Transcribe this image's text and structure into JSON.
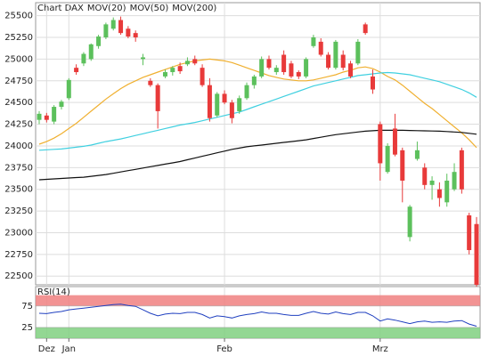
{
  "chart_data": [
    {
      "type": "candlestick",
      "title": "Chart DAX",
      "title_color": "#e05a5a",
      "categories": [
        null,
        "Dez",
        null,
        null,
        "Jan",
        null,
        null,
        null,
        null,
        null,
        null,
        null,
        null,
        null,
        null,
        null,
        null,
        null,
        null,
        null,
        null,
        null,
        null,
        null,
        null,
        "Feb",
        null,
        null,
        null,
        null,
        null,
        null,
        null,
        null,
        null,
        null,
        null,
        null,
        null,
        null,
        null,
        null,
        null,
        null,
        null,
        null,
        "Mrz",
        null,
        null,
        null,
        null,
        null,
        null,
        null,
        null,
        null,
        null,
        null,
        null,
        null
      ],
      "open": [
        24300,
        24350,
        24280,
        24450,
        24550,
        24900,
        24950,
        25000,
        25150,
        25250,
        25350,
        25450,
        25350,
        25300,
        25000,
        24750,
        24700,
        24800,
        24850,
        24920,
        24940,
        25000,
        24900,
        24700,
        24350,
        24600,
        24500,
        24400,
        24550,
        24700,
        24800,
        25000,
        24850,
        25050,
        24950,
        24850,
        24800,
        25150,
        25200,
        25050,
        24900,
        25050,
        24950,
        24950,
        25400,
        24800,
        24250,
        23700,
        24200,
        23950,
        22950,
        23850,
        23750,
        23550,
        23500,
        23350,
        23500,
        23950,
        23200,
        23100
      ],
      "high": [
        24400,
        24380,
        24470,
        24530,
        24780,
        24940,
        25080,
        25180,
        25280,
        25420,
        25480,
        25490,
        25380,
        25330,
        25060,
        24780,
        24720,
        24880,
        24920,
        24960,
        25020,
        25040,
        24940,
        24780,
        24620,
        24640,
        24530,
        24580,
        24730,
        24820,
        25030,
        25040,
        24930,
        25100,
        24980,
        24870,
        25020,
        25280,
        25240,
        25080,
        25220,
        25100,
        24980,
        25230,
        25420,
        24880,
        24280,
        24030,
        24370,
        23980,
        23320,
        24050,
        23800,
        23650,
        23580,
        23680,
        23800,
        23980,
        23230,
        23180
      ],
      "low": [
        24250,
        24270,
        24250,
        24420,
        24530,
        24820,
        24920,
        24980,
        25120,
        25230,
        25330,
        25280,
        25240,
        25200,
        24930,
        24680,
        24200,
        24780,
        24810,
        24830,
        24920,
        24930,
        24680,
        24280,
        24330,
        24480,
        24260,
        24370,
        24530,
        24660,
        24780,
        24880,
        24820,
        24820,
        24780,
        24770,
        24780,
        25130,
        25030,
        24880,
        24880,
        24870,
        24780,
        24930,
        25280,
        24600,
        23600,
        23680,
        23880,
        23350,
        22900,
        23830,
        23500,
        23380,
        23300,
        23300,
        23480,
        23450,
        22750,
        22380
      ],
      "close": [
        24370,
        24300,
        24450,
        24510,
        24760,
        24850,
        25060,
        25170,
        25260,
        25400,
        25450,
        25300,
        25260,
        25250,
        25020,
        24700,
        24400,
        24850,
        24900,
        24860,
        24980,
        24950,
        24700,
        24320,
        24600,
        24500,
        24320,
        24550,
        24700,
        24800,
        25000,
        24900,
        24900,
        24850,
        24800,
        24800,
        25000,
        25250,
        25050,
        24900,
        25200,
        24900,
        24800,
        25200,
        25300,
        24650,
        23800,
        24000,
        23900,
        23600,
        23300,
        23950,
        23550,
        23600,
        23400,
        23600,
        23700,
        23500,
        22800,
        22400
      ],
      "up_color": "#5cc05c",
      "down_color": "#e83a3a",
      "overlays": [
        {
          "name": "MOV(20)",
          "color": "#f0b030",
          "values": [
            24020,
            24050,
            24090,
            24140,
            24200,
            24260,
            24330,
            24400,
            24470,
            24540,
            24600,
            24660,
            24710,
            24750,
            24790,
            24820,
            24850,
            24880,
            24910,
            24940,
            24960,
            24980,
            24990,
            25000,
            24990,
            24980,
            24960,
            24930,
            24900,
            24870,
            24840,
            24810,
            24790,
            24770,
            24760,
            24750,
            24750,
            24760,
            24780,
            24800,
            24820,
            24850,
            24870,
            24900,
            24910,
            24890,
            24850,
            24800,
            24760,
            24700,
            24630,
            24560,
            24490,
            24430,
            24360,
            24290,
            24220,
            24150,
            24070,
            23980
          ]
        },
        {
          "name": "MOV(50)",
          "color": "#40d0e0",
          "values": [
            23950,
            23955,
            23960,
            23965,
            23975,
            23985,
            23995,
            24010,
            24030,
            24050,
            24065,
            24080,
            24100,
            24120,
            24140,
            24160,
            24180,
            24200,
            24220,
            24240,
            24255,
            24270,
            24290,
            24310,
            24330,
            24350,
            24370,
            24390,
            24420,
            24450,
            24480,
            24510,
            24540,
            24570,
            24600,
            24630,
            24660,
            24690,
            24710,
            24730,
            24750,
            24770,
            24790,
            24810,
            24820,
            24830,
            24840,
            24845,
            24840,
            24830,
            24820,
            24800,
            24780,
            24760,
            24740,
            24710,
            24680,
            24650,
            24610,
            24560
          ]
        },
        {
          "name": "MOV(200)",
          "color": "#111111",
          "values": [
            23610,
            23615,
            23620,
            23625,
            23630,
            23635,
            23640,
            23650,
            23660,
            23670,
            23685,
            23700,
            23715,
            23730,
            23745,
            23760,
            23775,
            23790,
            23805,
            23820,
            23840,
            23860,
            23880,
            23900,
            23920,
            23940,
            23960,
            23975,
            23990,
            24000,
            24010,
            24020,
            24030,
            24040,
            24050,
            24060,
            24070,
            24085,
            24100,
            24115,
            24130,
            24140,
            24150,
            24160,
            24170,
            24175,
            24180,
            24180,
            24180,
            24180,
            24178,
            24176,
            24174,
            24172,
            24170,
            24165,
            24160,
            24155,
            24145,
            24135
          ]
        }
      ],
      "ylim": [
        22400,
        25650
      ],
      "yticks": [
        22500,
        22750,
        23000,
        23250,
        23500,
        23750,
        24000,
        24250,
        24500,
        24750,
        25000,
        25250,
        25500
      ],
      "grid": true
    },
    {
      "type": "line",
      "title": "RSI(14)",
      "color": "#2040c0",
      "values": [
        58,
        57,
        60,
        62,
        66,
        68,
        70,
        72,
        74,
        76,
        78,
        79,
        76,
        74,
        66,
        58,
        52,
        56,
        58,
        57,
        60,
        60,
        55,
        47,
        52,
        50,
        47,
        52,
        55,
        57,
        61,
        58,
        58,
        55,
        53,
        53,
        58,
        62,
        58,
        56,
        61,
        57,
        55,
        60,
        60,
        52,
        40,
        45,
        42,
        38,
        34,
        38,
        40,
        37,
        38,
        37,
        40,
        41,
        33,
        28
      ],
      "bands": [
        {
          "from": 75,
          "to": 100,
          "color": "#f08080"
        },
        {
          "from": 0,
          "to": 25,
          "color": "#80d080"
        }
      ],
      "ylim": [
        0,
        120
      ],
      "yticks": [
        25,
        75
      ],
      "grid": true
    }
  ]
}
